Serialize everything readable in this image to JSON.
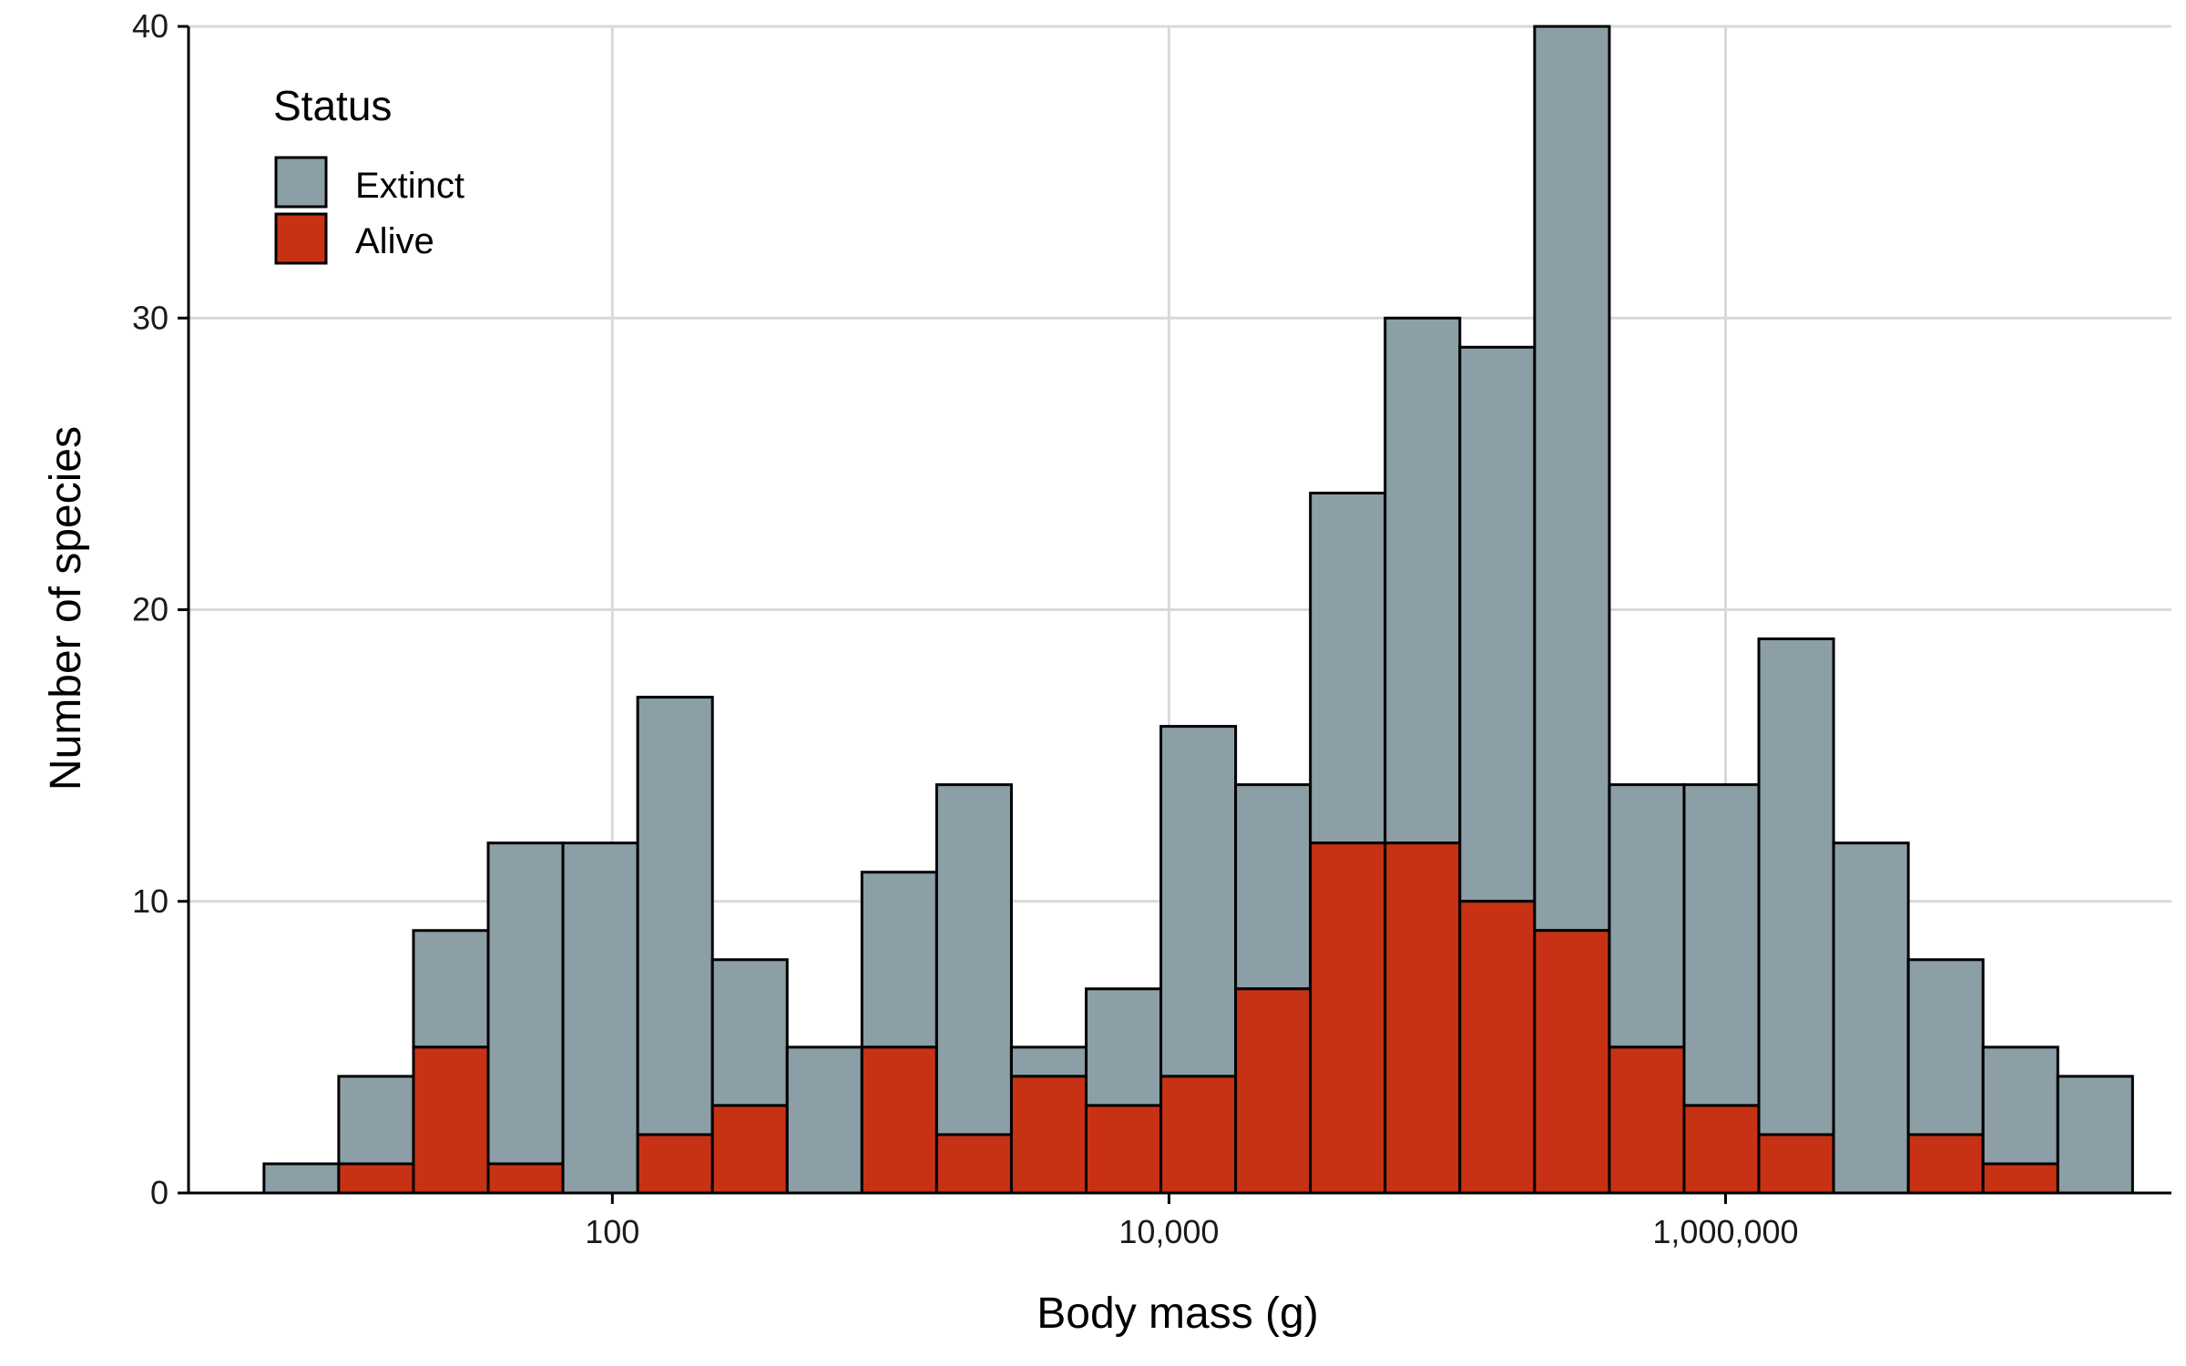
{
  "chart_data": {
    "type": "bar",
    "subtype": "stacked-histogram",
    "xlabel": "Body mass (g)",
    "ylabel": "Number of species",
    "x_scale": "log10",
    "xlim": [
      3,
      40000000
    ],
    "ylim": [
      0,
      40
    ],
    "x_ticks": [
      {
        "value": 100,
        "label": "100"
      },
      {
        "value": 10000,
        "label": "10,000"
      },
      {
        "value": 1000000,
        "label": "1,000,000"
      }
    ],
    "y_ticks": [
      {
        "value": 0,
        "label": "0"
      },
      {
        "value": 10,
        "label": "10"
      },
      {
        "value": 20,
        "label": "20"
      },
      {
        "value": 30,
        "label": "30"
      },
      {
        "value": 40,
        "label": "40"
      }
    ],
    "grid": true,
    "legend": {
      "title": "Status",
      "placement": "top-left",
      "entries": [
        {
          "label": "Extinct",
          "color": "#8c9fa6"
        },
        {
          "label": "Alive",
          "color": "#c83214"
        }
      ]
    },
    "bins": {
      "start": 5.6,
      "end": 29000000,
      "count": 25,
      "total": [
        1,
        4,
        9,
        12,
        12,
        17,
        8,
        5,
        11,
        14,
        5,
        7,
        16,
        14,
        24,
        30,
        29,
        40,
        14,
        14,
        19,
        12,
        8,
        5,
        4
      ],
      "alive": [
        0,
        1,
        5,
        1,
        0,
        2,
        3,
        0,
        5,
        2,
        4,
        3,
        4,
        7,
        12,
        12,
        10,
        9,
        5,
        3,
        2,
        0,
        2,
        1,
        0
      ]
    },
    "series": [
      {
        "name": "Extinct",
        "color": "#8c9fa6"
      },
      {
        "name": "Alive",
        "color": "#c83214"
      }
    ]
  }
}
